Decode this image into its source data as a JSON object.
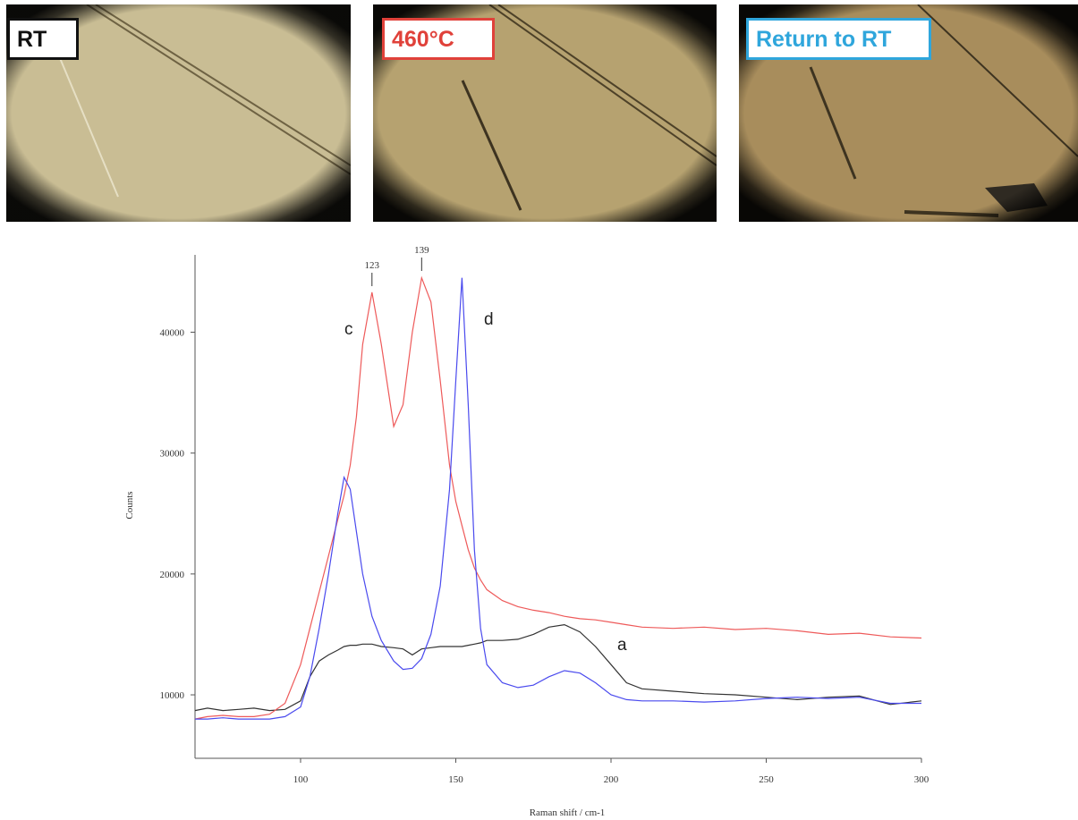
{
  "panels": [
    {
      "label": "RT"
    },
    {
      "label": "460°C"
    },
    {
      "label": "Return to RT"
    }
  ],
  "chart_data": {
    "type": "line",
    "xlabel": "Raman shift / cm-1",
    "ylabel": "Counts",
    "x": [
      66,
      70,
      75,
      80,
      85,
      90,
      95,
      100,
      103,
      106,
      109,
      112,
      114,
      116,
      118,
      120,
      123,
      126,
      130,
      133,
      136,
      139,
      142,
      145,
      148,
      150,
      152,
      154,
      156,
      158,
      160,
      165,
      170,
      175,
      180,
      185,
      190,
      195,
      200,
      205,
      210,
      220,
      230,
      240,
      250,
      260,
      270,
      280,
      290,
      300
    ],
    "series": [
      {
        "name": "a",
        "color": "#333333",
        "values": [
          8700,
          8900,
          8700,
          8800,
          8900,
          8700,
          8800,
          9500,
          11500,
          12800,
          13300,
          13700,
          14000,
          14100,
          14100,
          14200,
          14200,
          14000,
          13900,
          13800,
          13300,
          13800,
          13900,
          14000,
          14000,
          14000,
          14000,
          14100,
          14200,
          14300,
          14500,
          14500,
          14600,
          15000,
          15600,
          15800,
          15200,
          14000,
          12500,
          11000,
          10500,
          10300,
          10100,
          10000,
          9800,
          9600,
          9800,
          9900,
          9200,
          9500
        ]
      },
      {
        "name": "c",
        "color": "#ee5a5a",
        "values": [
          8000,
          8200,
          8300,
          8200,
          8200,
          8400,
          9300,
          12500,
          15500,
          18500,
          21500,
          24500,
          26500,
          29000,
          33000,
          39000,
          43300,
          39000,
          32200,
          34000,
          40000,
          44500,
          42500,
          36000,
          29000,
          26000,
          24000,
          22000,
          20500,
          19500,
          18700,
          17800,
          17300,
          17000,
          16800,
          16500,
          16300,
          16200,
          16000,
          15800,
          15600,
          15500,
          15600,
          15400,
          15500,
          15300,
          15000,
          15100,
          14800,
          14700
        ]
      },
      {
        "name": "d",
        "color": "#4a4aee",
        "values": [
          8000,
          8000,
          8100,
          8000,
          8000,
          8000,
          8200,
          9000,
          11500,
          15500,
          20000,
          25000,
          28000,
          27000,
          23500,
          20000,
          16500,
          14500,
          12800,
          12100,
          12200,
          13000,
          15000,
          19000,
          27000,
          36000,
          44500,
          34000,
          22000,
          15500,
          12500,
          11000,
          10600,
          10800,
          11500,
          12000,
          11800,
          11000,
          10000,
          9600,
          9500,
          9500,
          9400,
          9500,
          9700,
          9800,
          9700,
          9800,
          9300,
          9300
        ]
      }
    ],
    "peak_labels": [
      123,
      139
    ],
    "xlim": [
      66,
      300
    ],
    "ylim": [
      4750,
      46400
    ],
    "xticks": [
      100,
      150,
      200,
      250,
      300
    ],
    "yticks": [
      10000,
      20000,
      30000,
      40000
    ]
  }
}
